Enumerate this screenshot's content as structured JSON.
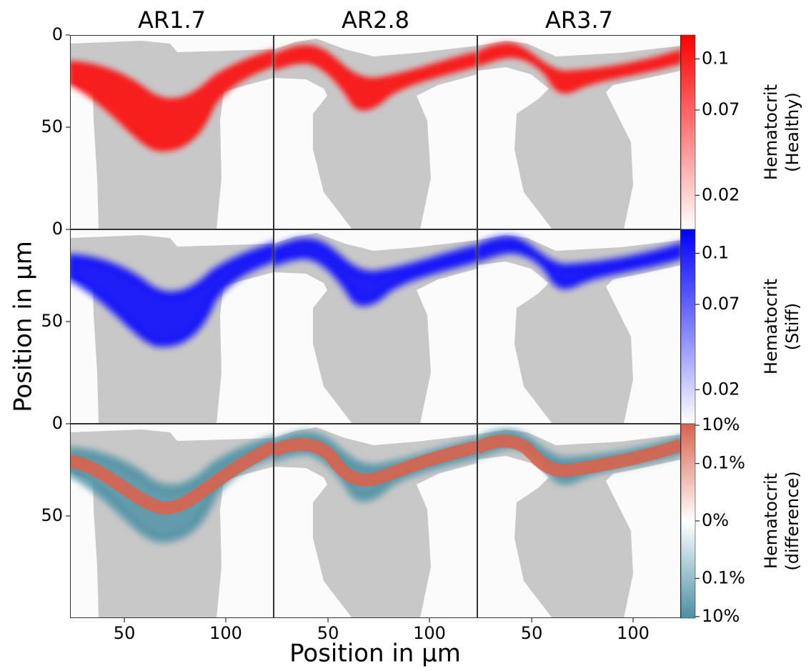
{
  "chart_data": {
    "type": "heatmap",
    "columns": [
      "AR1.7",
      "AR2.8",
      "AR3.7"
    ],
    "xlabel": "Position in μm",
    "ylabel": "Position in μm",
    "xlim": [
      23.2,
      123.6
    ],
    "xticks": [
      50,
      100
    ],
    "ylim": [
      0,
      105.4
    ],
    "yticks": [
      0,
      50
    ],
    "yaxis_inverted": true,
    "vessel_color": "#c8c8c8",
    "background_color": "#fbfbfb",
    "colorbars": [
      {
        "label": [
          "Hematocrit",
          "(Healthy)"
        ],
        "scale": "linear",
        "clim": [
          0,
          0.114
        ],
        "ticks": [
          0.1,
          0.07,
          0.02
        ],
        "colors": [
          "#ffffff",
          "#ff0000"
        ]
      },
      {
        "label": [
          "Hematocrit",
          "(Stiff)"
        ],
        "scale": "linear",
        "clim": [
          0,
          0.114
        ],
        "ticks": [
          0.1,
          0.07,
          0.02
        ],
        "colors": [
          "#ffffff",
          "#0000ff"
        ]
      },
      {
        "label": [
          "Hematocrit",
          "(difference)"
        ],
        "scale": "symlog",
        "linthresh": 0.1,
        "linscale": 3,
        "clim": [
          -12,
          12
        ],
        "ticks": [
          {
            "value": 10,
            "label": "10%"
          },
          {
            "value": 0.1,
            "label": "0.1%"
          },
          {
            "value": 0,
            "label": "0%"
          },
          {
            "value": -0.1,
            "label": "0.1%"
          },
          {
            "value": -10,
            "label": "10%"
          }
        ],
        "colors": [
          "#4a90a4",
          "#ffffff",
          "#d9634e"
        ]
      }
    ]
  }
}
